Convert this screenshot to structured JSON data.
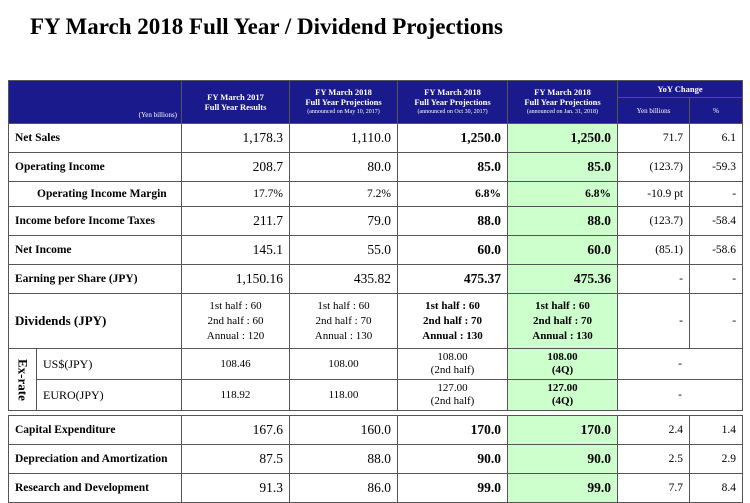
{
  "title": "FY March 2018 Full Year / Dividend Projections",
  "header": {
    "unit": "(Yen billions)",
    "col1_l1": "FY March 2017",
    "col1_l2": "Full Year Results",
    "col2_l1": "FY March 2018",
    "col2_l2": "Full Year Projections",
    "col2_l3": "(announced on May 10, 2017)",
    "col3_l1": "FY March 2018",
    "col3_l2": "Full Year Projections",
    "col3_l3": "(announced on Oct 30, 2017)",
    "col4_l1": "FY March 2018",
    "col4_l2": "Full Year Projections",
    "col4_l3": "(announced on Jan. 31, 2018)",
    "yoy": "YoY Change",
    "yoy_yen": "Yen billions",
    "yoy_pct": "%"
  },
  "rows": {
    "net_sales": {
      "label": "Net Sales",
      "c1": "1,178.3",
      "c2": "1,110.0",
      "c3": "1,250.0",
      "c4": "1,250.0",
      "yen": "71.7",
      "pct": "6.1"
    },
    "op_income": {
      "label": "Operating Income",
      "c1": "208.7",
      "c2": "80.0",
      "c3": "85.0",
      "c4": "85.0",
      "yen": "(123.7)",
      "pct": "-59.3"
    },
    "op_margin": {
      "label": "Operating Income Margin",
      "c1": "17.7%",
      "c2": "7.2%",
      "c3": "6.8%",
      "c4": "6.8%",
      "yen": "-10.9 pt",
      "pct": "-"
    },
    "pre_tax": {
      "label": "Income before Income Taxes",
      "c1": "211.7",
      "c2": "79.0",
      "c3": "88.0",
      "c4": "88.0",
      "yen": "(123.7)",
      "pct": "-58.4"
    },
    "net_income": {
      "label": "Net Income",
      "c1": "145.1",
      "c2": "55.0",
      "c3": "60.0",
      "c4": "60.0",
      "yen": "(85.1)",
      "pct": "-58.6"
    },
    "eps": {
      "label": "Earning per Share (JPY)",
      "c1": "1,150.16",
      "c2": "435.82",
      "c3": "475.37",
      "c4": "475.36",
      "yen": "-",
      "pct": "-"
    },
    "dividends": {
      "label": "Dividends (JPY)",
      "c1": [
        "1st half : 60",
        "2nd half : 60",
        "Annual : 120"
      ],
      "c2": [
        "1st half : 60",
        "2nd half : 70",
        "Annual : 130"
      ],
      "c3": [
        "1st half : 60",
        "2nd half : 70",
        "Annual : 130"
      ],
      "c4": [
        "1st half : 60",
        "2nd half : 70",
        "Annual : 130"
      ],
      "yen": "-",
      "pct": "-"
    },
    "ex_rate_label": "Ex-rate",
    "usd": {
      "label": "US$(JPY)",
      "c1": "108.46",
      "c2": "108.00",
      "c3": "108.00",
      "c3b": "(2nd half)",
      "c4": "108.00",
      "c4b": "(4Q)",
      "yoy": "-"
    },
    "euro": {
      "label": "EURO(JPY)",
      "c1": "118.92",
      "c2": "118.00",
      "c3": "127.00",
      "c3b": "(2nd half)",
      "c4": "127.00",
      "c4b": "(4Q)",
      "yoy": "-"
    },
    "capex": {
      "label": "Capital Expenditure",
      "c1": "167.6",
      "c2": "160.0",
      "c3": "170.0",
      "c4": "170.0",
      "yen": "2.4",
      "pct": "1.4"
    },
    "depr": {
      "label": "Depreciation and Amortization",
      "c1": "87.5",
      "c2": "88.0",
      "c3": "90.0",
      "c4": "90.0",
      "yen": "2.5",
      "pct": "2.9"
    },
    "rnd": {
      "label": "Research and Development",
      "c1": "91.3",
      "c2": "86.0",
      "c3": "99.0",
      "c4": "99.0",
      "yen": "7.7",
      "pct": "8.4"
    }
  }
}
